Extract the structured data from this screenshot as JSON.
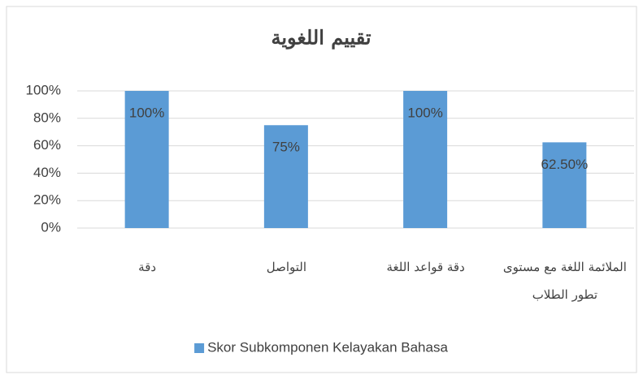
{
  "chart_data": {
    "type": "bar",
    "title": "تقييم اللغوية",
    "categories": [
      "دقة",
      "التواصل",
      "دقة قواعد اللغة",
      "الملائمة اللغة مع مستوى تطور الطلاب"
    ],
    "series": [
      {
        "name": "Skor Subkomponen Kelayakan Bahasa",
        "color": "#5b9bd5",
        "values": [
          100,
          75,
          100,
          62.5
        ],
        "value_labels": [
          "100%",
          "75%",
          "100%",
          "62.50%"
        ]
      }
    ],
    "ylim": [
      0,
      100
    ],
    "yticks": [
      {
        "value": 0,
        "label": "0%"
      },
      {
        "value": 20,
        "label": "20%"
      },
      {
        "value": 40,
        "label": "40%"
      },
      {
        "value": 60,
        "label": "60%"
      },
      {
        "value": 80,
        "label": "80%"
      },
      {
        "value": 100,
        "label": "100%"
      }
    ],
    "grid": true,
    "legend": "bottom"
  }
}
